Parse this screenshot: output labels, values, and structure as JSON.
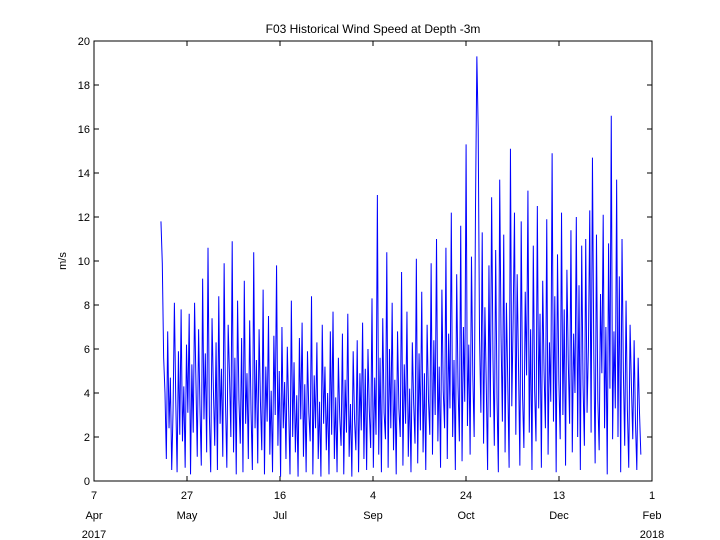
{
  "chart_data": {
    "type": "line",
    "title": "F03 Historical Wind Speed at Depth -3m",
    "xlabel": "",
    "ylabel": "m/s",
    "xlim": [
      "2017-04-07",
      "2018-02-01"
    ],
    "ylim": [
      0,
      20
    ],
    "grid": false,
    "yticks": [
      0,
      2,
      4,
      6,
      8,
      10,
      12,
      14,
      16,
      18,
      20
    ],
    "xticks": [
      {
        "date": "2017-04-07",
        "day": "7",
        "month": "Apr"
      },
      {
        "date": "2017-05-27",
        "day": "27",
        "month": "May"
      },
      {
        "date": "2017-07-16",
        "day": "16",
        "month": "Jul"
      },
      {
        "date": "2017-09-04",
        "day": "4",
        "month": "Sep"
      },
      {
        "date": "2017-10-24",
        "day": "24",
        "month": "Oct"
      },
      {
        "date": "2017-12-13",
        "day": "13",
        "month": "Dec"
      },
      {
        "date": "2018-02-01",
        "day": "1",
        "month": "Feb"
      }
    ],
    "year_labels": {
      "start": "2017",
      "end": "2018"
    },
    "series": [
      {
        "color": "#0000ff",
        "start_date": "2017-05-13",
        "end_date": "2018-01-26",
        "values": [
          11.8,
          9.9,
          5.6,
          4.0,
          1.0,
          6.8,
          2.4,
          4.7,
          0.5,
          3.2,
          8.1,
          3.7,
          0.4,
          5.9,
          2.1,
          7.8,
          1.8,
          4.3,
          0.6,
          6.2,
          3.1,
          7.6,
          0.3,
          5.3,
          2.2,
          8.1,
          4.6,
          1.1,
          6.9,
          3.4,
          0.7,
          9.2,
          2.8,
          5.8,
          1.3,
          10.6,
          3.0,
          0.4,
          7.4,
          4.2,
          1.6,
          6.3,
          0.5,
          8.4,
          2.6,
          5.1,
          1.1,
          9.9,
          3.6,
          0.6,
          7.1,
          4.8,
          2.0,
          10.9,
          1.3,
          5.6,
          0.3,
          8.2,
          3.7,
          1.7,
          6.5,
          0.4,
          9.1,
          2.6,
          4.9,
          1.0,
          7.3,
          3.2,
          0.5,
          10.4,
          2.4,
          5.5,
          0.8,
          6.9,
          3.6,
          1.4,
          8.7,
          0.3,
          5.2,
          2.7,
          7.5,
          1.2,
          4.1,
          0.4,
          6.6,
          3.0,
          9.8,
          1.6,
          5.0,
          0.2,
          7.0,
          2.4,
          4.5,
          1.0,
          6.1,
          3.3,
          0.3,
          8.2,
          2.0,
          5.4,
          1.3,
          3.9,
          0.2,
          6.5,
          2.8,
          7.2,
          1.1,
          4.4,
          0.4,
          5.9,
          3.1,
          1.8,
          8.4,
          0.3,
          4.8,
          2.4,
          6.3,
          1.0,
          3.6,
          0.2,
          7.1,
          2.6,
          5.2,
          1.4,
          4.0,
          0.3,
          6.8,
          2.1,
          7.7,
          1.0,
          3.8,
          0.4,
          5.6,
          2.9,
          1.6,
          6.7,
          0.3,
          4.6,
          2.2,
          7.6,
          1.1,
          3.5,
          0.2,
          5.9,
          2.8,
          1.4,
          6.4,
          0.4,
          4.9,
          2.3,
          7.2,
          1.0,
          5.1,
          0.5,
          6.0,
          3.2,
          1.5,
          8.3,
          0.6,
          4.7,
          2.1,
          13.0,
          1.2,
          5.6,
          0.4,
          7.4,
          3.1,
          1.9,
          10.4,
          0.6,
          6.0,
          2.4,
          8.1,
          1.4,
          4.6,
          0.3,
          6.8,
          3.3,
          2.0,
          9.5,
          0.7,
          5.3,
          2.6,
          7.7,
          1.1,
          4.2,
          0.4,
          6.3,
          3.5,
          1.7,
          10.1,
          0.8,
          5.8,
          2.3,
          8.6,
          1.3,
          4.9,
          0.5,
          7.1,
          3.7,
          2.1,
          9.9,
          1.2,
          6.4,
          3.0,
          11.0,
          1.8,
          5.2,
          0.6,
          8.7,
          4.1,
          2.4,
          10.6,
          1.0,
          6.7,
          3.3,
          12.2,
          2.0,
          5.5,
          0.5,
          9.4,
          4.3,
          1.8,
          11.6,
          0.9,
          7.0,
          3.6,
          15.3,
          2.5,
          6.2,
          1.2,
          10.2,
          4.8,
          2.0,
          12.4,
          19.3,
          16.0,
          6.5,
          3.1,
          11.3,
          1.7,
          7.9,
          4.4,
          0.5,
          9.8,
          2.9,
          12.9,
          5.6,
          1.6,
          10.5,
          3.8,
          0.4,
          13.7,
          6.6,
          2.7,
          11.2,
          1.3,
          8.1,
          4.5,
          0.6,
          15.1,
          3.4,
          7.3,
          12.2,
          2.1,
          9.4,
          5.2,
          0.7,
          11.8,
          3.9,
          1.5,
          8.6,
          4.8,
          13.2,
          2.2,
          6.9,
          0.5,
          10.7,
          4.1,
          1.8,
          12.5,
          3.3,
          7.6,
          0.6,
          9.1,
          5.0,
          2.4,
          11.9,
          1.2,
          6.3,
          3.6,
          14.9,
          2.7,
          8.4,
          0.4,
          10.3,
          4.6,
          1.9,
          12.2,
          3.0,
          7.8,
          0.7,
          9.6,
          5.5,
          2.6,
          11.4,
          1.3,
          6.7,
          4.0,
          12.0,
          2.0,
          8.9,
          0.5,
          10.7,
          4.4,
          1.6,
          11.0,
          3.1,
          6.1,
          12.3,
          2.2,
          14.7,
          5.8,
          0.8,
          11.2,
          3.7,
          1.4,
          8.5,
          4.9,
          12.1,
          2.4,
          7.0,
          0.3,
          10.8,
          4.2,
          16.6,
          1.9,
          6.8,
          3.3,
          13.7,
          2.0,
          9.3,
          0.4,
          11.0,
          5.0,
          1.6,
          8.2,
          3.2,
          0.6,
          7.1,
          4.3,
          1.9,
          6.4,
          2.7,
          0.5,
          5.6,
          3.1,
          1.2
        ]
      }
    ]
  }
}
